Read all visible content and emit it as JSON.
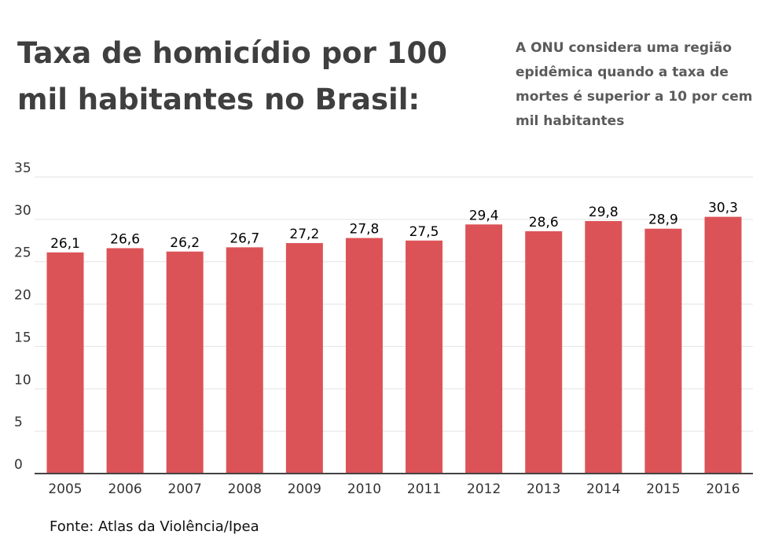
{
  "chart_data": {
    "type": "bar",
    "title": "Taxa de homicídio por 100 mil habitantes no Brasil:",
    "annotation": "A ONU considera uma região epidêmica quando a taxa de mortes é superior a 10  por cem mil habitantes",
    "source": "Fonte: Atlas da Violência/Ipea",
    "categories": [
      "2005",
      "2006",
      "2007",
      "2008",
      "2009",
      "2010",
      "2011",
      "2012",
      "2013",
      "2014",
      "2015",
      "2016"
    ],
    "values": [
      26.1,
      26.6,
      26.2,
      26.7,
      27.2,
      27.8,
      27.5,
      29.4,
      28.6,
      29.8,
      28.9,
      30.3
    ],
    "value_labels": [
      "26,1",
      "26,6",
      "26,2",
      "26,7",
      "27,2",
      "27,8",
      "27,5",
      "29,4",
      "28,6",
      "29,8",
      "28,9",
      "30,3"
    ],
    "yticks": [
      "0",
      "5",
      "10",
      "15",
      "20",
      "25",
      "30",
      "35"
    ],
    "ylim": [
      0,
      35
    ],
    "grid": true,
    "bar_color": "#dc5357",
    "xlabel": "",
    "ylabel": ""
  }
}
